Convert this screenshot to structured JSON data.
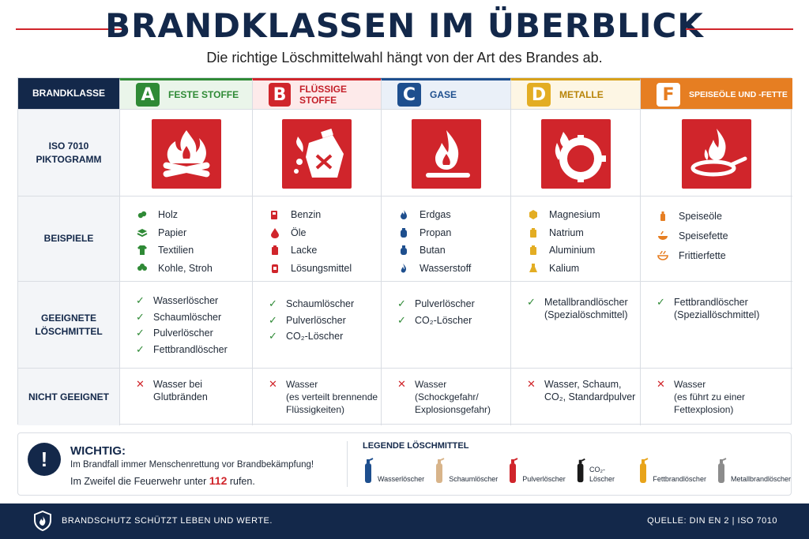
{
  "header": {
    "title": "BRANDKLASSEN IM ÜBERBLICK",
    "subtitle": "Die richtige Löschmittelwahl hängt von der Art des Brandes ab."
  },
  "table": {
    "row_labels": {
      "class": "BRANDKLASSE",
      "pictogram": "ISO 7010\nPIKTOGRAMM",
      "examples": "BEISPIELE",
      "agents": "GEEIGNETE\nLÖSCHMITTEL",
      "unsuitable": "NICHT GEEIGNET"
    },
    "classes": [
      {
        "letter": "A",
        "name": "FESTE STOFFE",
        "color": "#2f8a36",
        "pictogram": "burning-wood-icon",
        "examples": [
          "Holz",
          "Papier",
          "Textilien",
          "Kohle, Stroh"
        ],
        "example_icons": [
          "wood-icon",
          "paper-icon",
          "shirt-icon",
          "straw-icon"
        ],
        "agents": [
          "Wasserlöscher",
          "Schaumlöscher",
          "Pulverlöscher",
          "Fettbrandlöscher"
        ],
        "unsuitable": "Wasser bei\nGlutbränden"
      },
      {
        "letter": "B",
        "name": "FLÜSSIGE STOFFE",
        "color": "#d0252b",
        "pictogram": "burning-canister-icon",
        "examples": [
          "Benzin",
          "Öle",
          "Lacke",
          "Lösungsmittel"
        ],
        "example_icons": [
          "fuel-icon",
          "drop-icon",
          "paint-can-icon",
          "solvent-icon"
        ],
        "agents": [
          "Schaumlöscher",
          "Pulverlöscher",
          "CO₂-Löscher"
        ],
        "unsuitable": "Wasser\n(es verteilt brennende\nFlüssigkeiten)"
      },
      {
        "letter": "C",
        "name": "GASE",
        "color": "#1e4f8e",
        "pictogram": "gas-flame-icon",
        "examples": [
          "Erdgas",
          "Propan",
          "Butan",
          "Wasserstoff"
        ],
        "example_icons": [
          "flame-icon",
          "gas-bottle-icon",
          "gas-bottle-icon",
          "hydrogen-flame-icon"
        ],
        "agents": [
          "Pulverlöscher",
          "CO₂-Löscher"
        ],
        "unsuitable": "Wasser\n(Schockgefahr/\nExplosionsgefahr)"
      },
      {
        "letter": "D",
        "name": "METALLE",
        "color": "#e3ad23",
        "pictogram": "burning-metal-icon",
        "examples": [
          "Magnesium",
          "Natrium",
          "Aluminium",
          "Kalium"
        ],
        "example_icons": [
          "metal-icon",
          "container-icon",
          "container-icon",
          "flask-icon"
        ],
        "agents": [
          "Metallbrandlöscher\n(Spezialöschmittel)"
        ],
        "unsuitable": "Wasser, Schaum,\nCO₂, Standardpulver"
      },
      {
        "letter": "F",
        "name": "SPEISEÖLE UND -FETTE",
        "color": "#e67e22",
        "pictogram": "burning-pan-icon",
        "examples": [
          "Speiseöle",
          "Speisefette",
          "Frittierfette"
        ],
        "example_icons": [
          "oil-bottle-icon",
          "fat-bowl-icon",
          "fryer-icon"
        ],
        "agents": [
          "Fettbrandlöscher\n(Speziallöschmittel)"
        ],
        "unsuitable": "Wasser\n(es führt zu einer\nFettexplosion)"
      }
    ]
  },
  "note": {
    "icon": "exclamation-icon",
    "title": "WICHTIG:",
    "line1": "Im Brandfall immer Menschenrettung vor Brandbekämpfung!",
    "line2_prefix": "Im Zweifel die Feuerwehr unter ",
    "line2_number": "112",
    "line2_suffix": " rufen."
  },
  "legend": {
    "title": "LEGENDE LÖSCHMITTEL",
    "items": [
      {
        "label": "Wasserlöscher",
        "color": "#1e4f8e"
      },
      {
        "label": "Schaumlöscher",
        "color": "#d8b48a"
      },
      {
        "label": "Pulverlöscher",
        "color": "#d0252b"
      },
      {
        "label": "CO₂-Löscher",
        "color": "#1a1a1a"
      },
      {
        "label": "Fettbrandlöscher",
        "color": "#e8a41a"
      },
      {
        "label": "Metallbrandlöscher",
        "color": "#8c8c8c"
      }
    ]
  },
  "footer": {
    "icon": "fire-shield-icon",
    "slogan": "BRANDSCHUTZ SCHÜTZT LEBEN UND WERTE.",
    "source": "QUELLE: DIN EN 2 | ISO 7010"
  }
}
